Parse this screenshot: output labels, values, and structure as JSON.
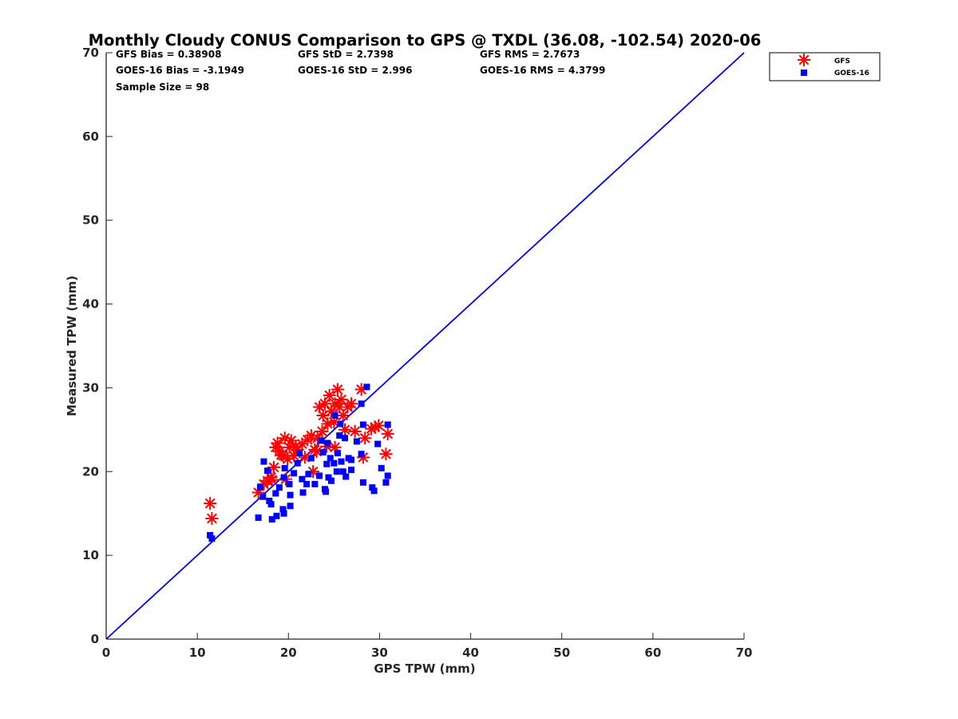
{
  "chart_data": {
    "type": "scatter",
    "title": "Monthly Cloudy CONUS Comparison to GPS @ TXDL (36.08, -102.54) 2020-06",
    "xlabel": "GPS TPW (mm)",
    "ylabel": "Measured TPW (mm)",
    "xlim": [
      0,
      70
    ],
    "ylim": [
      0,
      70
    ],
    "xticks": [
      "0",
      "10",
      "20",
      "30",
      "40",
      "50",
      "60",
      "70"
    ],
    "yticks": [
      "0",
      "10",
      "20",
      "30",
      "40",
      "50",
      "60",
      "70"
    ],
    "grid": false,
    "legend_position": "top-right-outside",
    "stats": [
      [
        "GFS Bias = 0.38908",
        "GFS StD = 2.7398",
        "GFS RMS = 2.7673"
      ],
      [
        "GOES-16 Bias = -3.1949",
        "GOES-16 StD = 2.996",
        "GOES-16 RMS = 4.3799"
      ],
      [
        "Sample Size = 98"
      ]
    ],
    "reference_line": {
      "name": "1:1 line",
      "x": [
        0,
        70
      ],
      "y": [
        0,
        70
      ],
      "color": "#0000ff"
    },
    "series": [
      {
        "name": "GFS",
        "marker": "asterisk",
        "color": "#ff0000",
        "points": [
          [
            11.4,
            16.2
          ],
          [
            11.6,
            14.4
          ],
          [
            16.7,
            17.5
          ],
          [
            17.3,
            18.5
          ],
          [
            17.7,
            18.9
          ],
          [
            18.1,
            19.3
          ],
          [
            18.4,
            20.5
          ],
          [
            18.6,
            22.9
          ],
          [
            18.8,
            23.4
          ],
          [
            19.0,
            22.4
          ],
          [
            19.4,
            21.9
          ],
          [
            19.6,
            24.0
          ],
          [
            19.9,
            21.5
          ],
          [
            20.1,
            22.9
          ],
          [
            20.3,
            23.7
          ],
          [
            20.6,
            21.9
          ],
          [
            21.0,
            22.6
          ],
          [
            21.5,
            23.3
          ],
          [
            21.8,
            21.7
          ],
          [
            22.1,
            23.8
          ],
          [
            22.5,
            24.3
          ],
          [
            22.9,
            22.6
          ],
          [
            23.2,
            24.0
          ],
          [
            23.4,
            27.7
          ],
          [
            23.7,
            24.8
          ],
          [
            23.8,
            26.7
          ],
          [
            24.0,
            28.1
          ],
          [
            24.3,
            25.7
          ],
          [
            24.5,
            29.1
          ],
          [
            24.7,
            27.2
          ],
          [
            25.0,
            25.9
          ],
          [
            25.1,
            28.1
          ],
          [
            25.4,
            29.8
          ],
          [
            25.6,
            27.7
          ],
          [
            25.8,
            28.6
          ],
          [
            26.0,
            26.7
          ],
          [
            26.5,
            27.7
          ],
          [
            26.9,
            28.1
          ],
          [
            27.3,
            24.8
          ],
          [
            28.0,
            29.8
          ],
          [
            28.2,
            21.7
          ],
          [
            28.4,
            24.0
          ],
          [
            29.1,
            25.1
          ],
          [
            29.5,
            25.3
          ],
          [
            29.9,
            25.5
          ],
          [
            30.7,
            22.1
          ],
          [
            30.9,
            24.5
          ],
          [
            19.7,
            19.1
          ],
          [
            22.7,
            20.0
          ],
          [
            25.1,
            22.9
          ],
          [
            23.1,
            22.4
          ],
          [
            18.2,
            19.0
          ],
          [
            19.2,
            22.0
          ],
          [
            20.8,
            23.0
          ],
          [
            24.2,
            23.0
          ],
          [
            26.2,
            25.0
          ]
        ]
      },
      {
        "name": "GOES-16",
        "marker": "square",
        "color": "#0000ff",
        "points": [
          [
            11.4,
            12.4
          ],
          [
            11.6,
            12.0
          ],
          [
            16.7,
            14.5
          ],
          [
            18.2,
            14.3
          ],
          [
            18.7,
            14.7
          ],
          [
            19.5,
            15.0
          ],
          [
            19.4,
            15.5
          ],
          [
            20.2,
            15.9
          ],
          [
            16.9,
            18.1
          ],
          [
            17.3,
            21.2
          ],
          [
            17.7,
            20.1
          ],
          [
            17.2,
            17.0
          ],
          [
            17.9,
            16.5
          ],
          [
            18.1,
            16.1
          ],
          [
            18.6,
            17.4
          ],
          [
            19.0,
            18.1
          ],
          [
            19.5,
            19.3
          ],
          [
            19.6,
            20.4
          ],
          [
            20.1,
            18.5
          ],
          [
            20.2,
            17.2
          ],
          [
            20.6,
            19.8
          ],
          [
            21.0,
            21.0
          ],
          [
            21.2,
            22.2
          ],
          [
            21.5,
            19.1
          ],
          [
            21.6,
            17.5
          ],
          [
            22.0,
            18.5
          ],
          [
            22.2,
            19.7
          ],
          [
            22.5,
            21.6
          ],
          [
            22.9,
            18.5
          ],
          [
            23.4,
            19.5
          ],
          [
            23.6,
            23.7
          ],
          [
            23.8,
            22.3
          ],
          [
            24.0,
            17.9
          ],
          [
            24.1,
            17.6
          ],
          [
            24.2,
            20.9
          ],
          [
            24.3,
            23.4
          ],
          [
            24.4,
            19.3
          ],
          [
            24.6,
            21.6
          ],
          [
            24.7,
            18.9
          ],
          [
            25.0,
            21.0
          ],
          [
            25.1,
            26.7
          ],
          [
            25.3,
            20.0
          ],
          [
            25.4,
            22.2
          ],
          [
            25.6,
            24.3
          ],
          [
            25.7,
            25.7
          ],
          [
            25.8,
            21.2
          ],
          [
            26.0,
            20.0
          ],
          [
            26.2,
            24.0
          ],
          [
            26.3,
            19.4
          ],
          [
            26.6,
            21.6
          ],
          [
            26.9,
            20.2
          ],
          [
            26.9,
            21.4
          ],
          [
            27.5,
            23.6
          ],
          [
            28.0,
            28.1
          ],
          [
            28.0,
            22.1
          ],
          [
            28.2,
            25.6
          ],
          [
            28.2,
            18.7
          ],
          [
            28.6,
            30.1
          ],
          [
            29.2,
            18.1
          ],
          [
            29.4,
            17.7
          ],
          [
            29.8,
            23.3
          ],
          [
            30.2,
            20.4
          ],
          [
            30.7,
            18.7
          ],
          [
            30.9,
            19.5
          ],
          [
            30.9,
            25.6
          ]
        ]
      }
    ]
  }
}
